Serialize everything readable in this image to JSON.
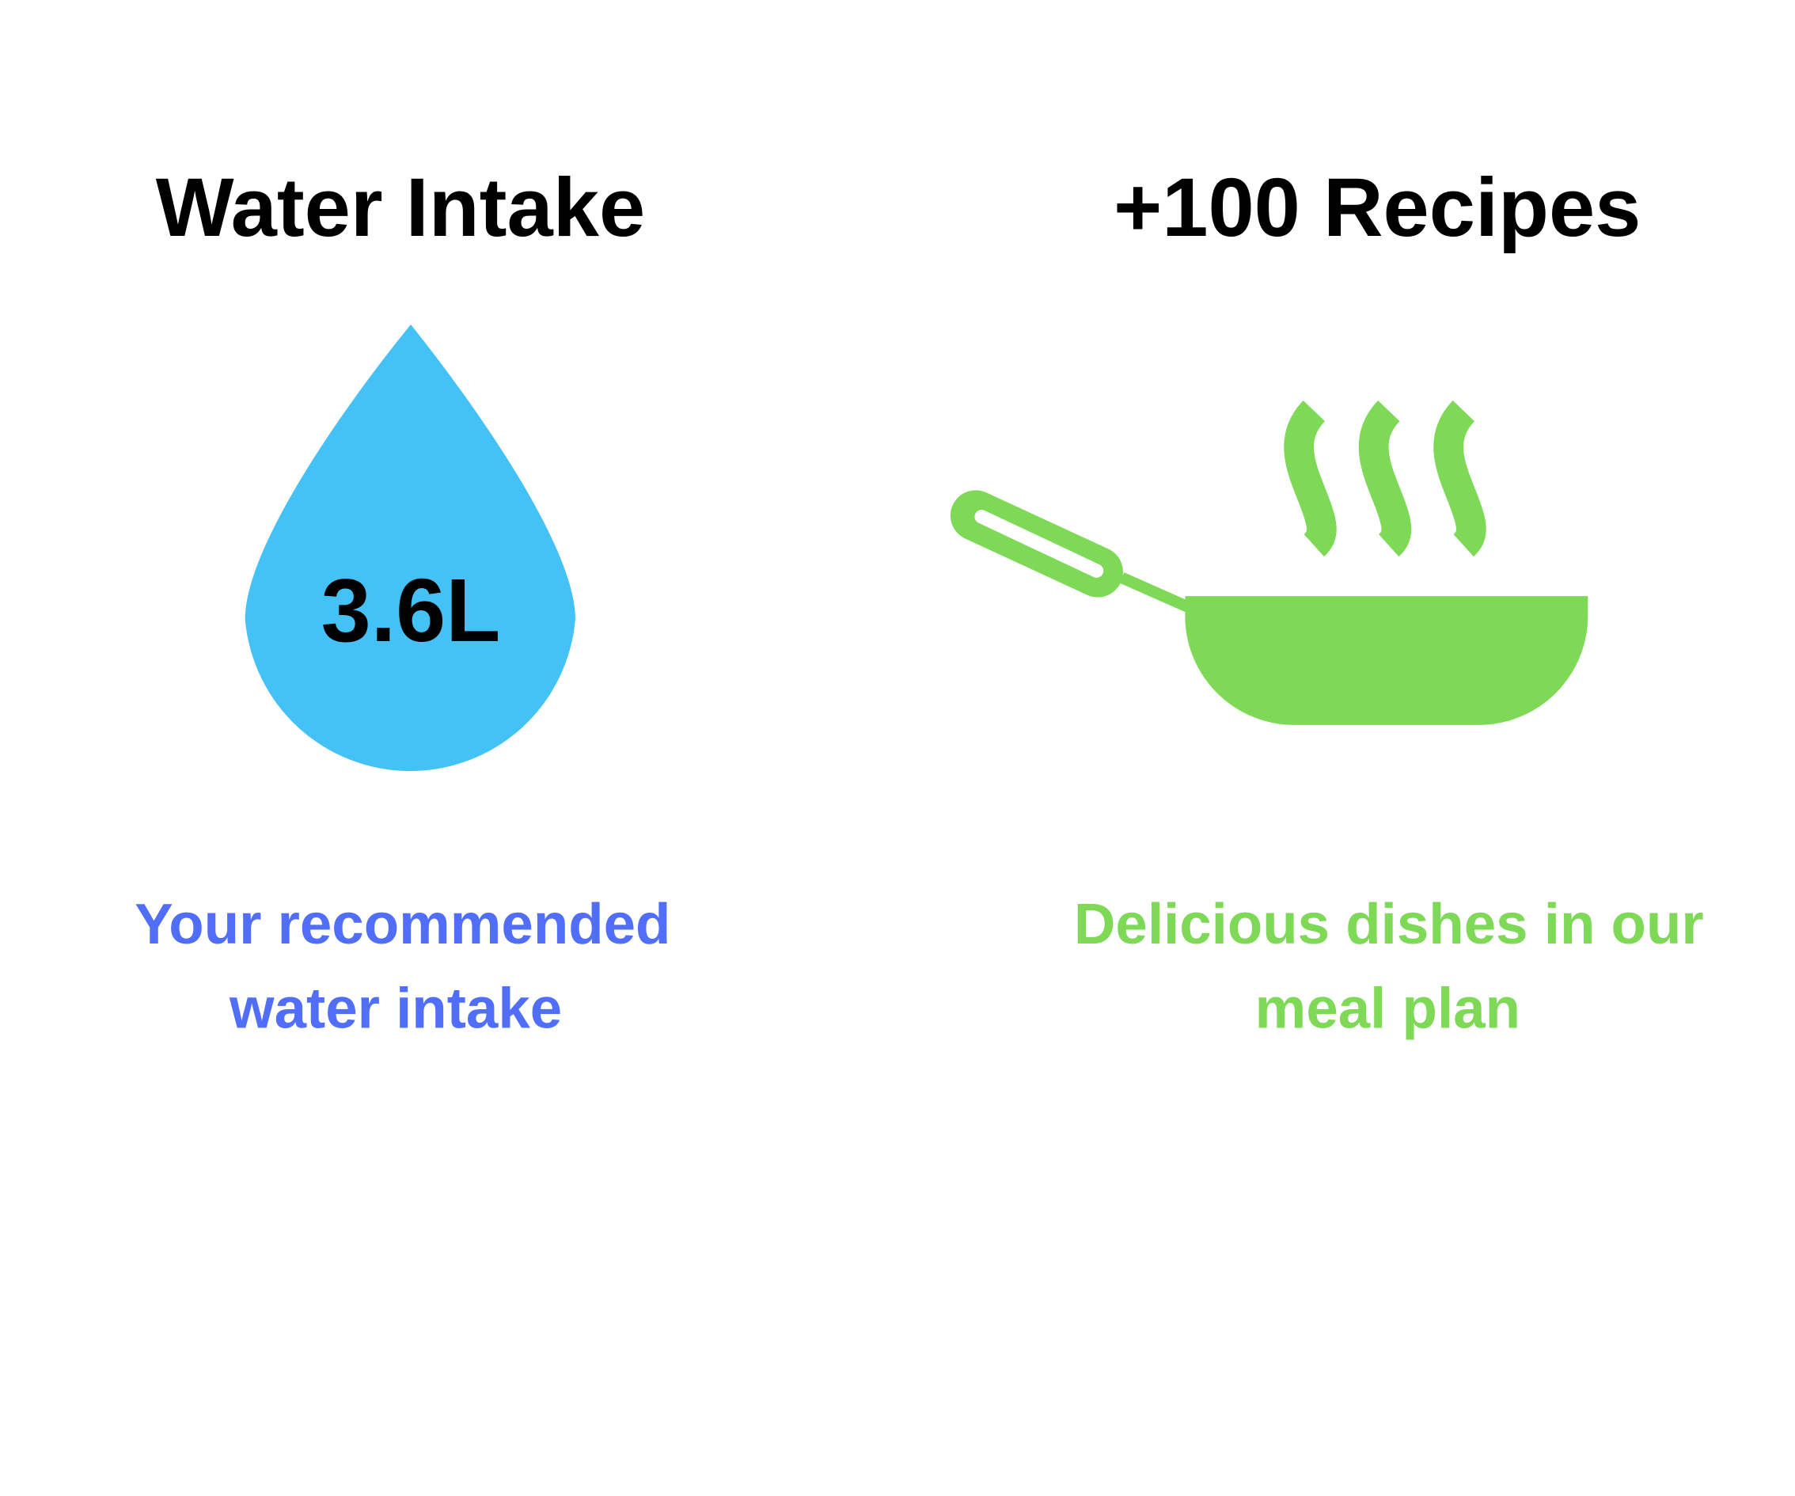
{
  "colors": {
    "water_drop": "#45C2F5",
    "water_text": "#506EF8",
    "recipes_green": "#7ED957",
    "text": "#000000",
    "background": "#FFFFFF"
  },
  "water": {
    "title": "Water Intake",
    "icon": "water-drop-icon",
    "value": "3.6L",
    "caption_lines": [
      "Your recommended",
      "water intake"
    ]
  },
  "recipes": {
    "title": "+100 Recipes",
    "icon": "steaming-frying-pan-icon",
    "caption_lines": [
      "Delicious dishes in our",
      "meal plan"
    ]
  }
}
